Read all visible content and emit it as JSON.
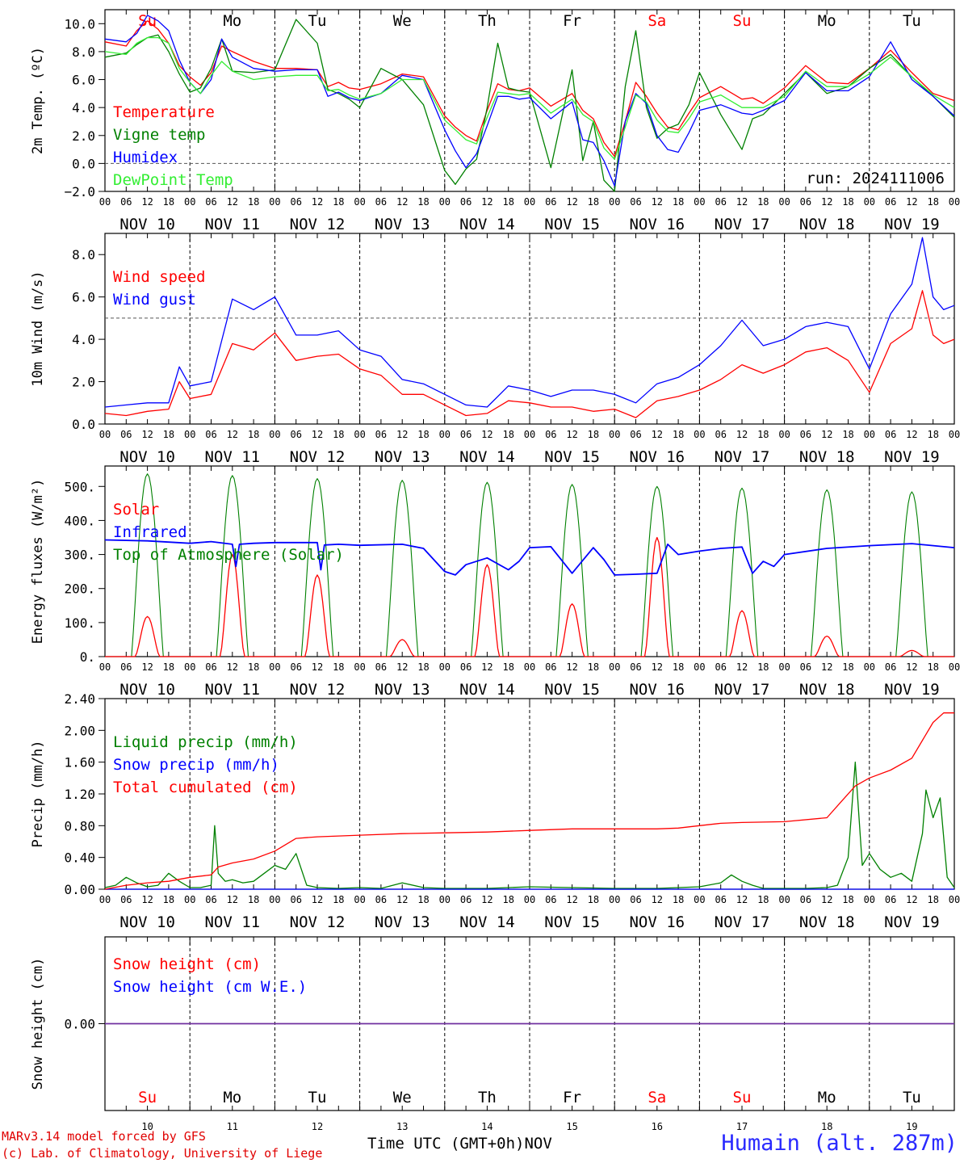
{
  "footer": {
    "model_credit": "MARv3.14 model forced by GFS",
    "lab_credit": "(c) Lab. of Climatology, University of Liege",
    "time_axis_title": "Time UTC (GMT+0h)",
    "month": "NOV",
    "station": "Humain (alt. 287m)"
  },
  "colors": {
    "red": "#ff0000",
    "green": "#008000",
    "blue": "#0000ff",
    "lightgreen": "#33ee33",
    "purple": "#7030a0"
  },
  "chart_data": [
    {
      "type": "line",
      "ylabel": "2m Temp. (ºC)",
      "ylim": [
        -2,
        11
      ],
      "yticks": [
        "10.0",
        "8.0",
        "6.0",
        "4.0",
        "2.0",
        "0.0",
        "−2.0"
      ],
      "ytick_values": [
        10,
        8,
        6,
        4,
        2,
        0,
        -2
      ],
      "reference_line": 0,
      "weekdays": [
        "Su",
        "Mo",
        "Tu",
        "We",
        "Th",
        "Fr",
        "Sa",
        "Su",
        "Mo",
        "Tu"
      ],
      "weekday_colors": [
        "red",
        "black",
        "black",
        "black",
        "black",
        "black",
        "red",
        "red",
        "black",
        "black"
      ],
      "hour_ticks": [
        "00",
        "06",
        "12",
        "18"
      ],
      "day_labels": [
        "NOV 10",
        "NOV 11",
        "NOV 12",
        "NOV 13",
        "NOV 14",
        "NOV 15",
        "NOV 16",
        "NOV 17",
        "NOV 18",
        "NOV 19"
      ],
      "run_label": "run: 2024111006",
      "x_hours": [
        0,
        6,
        9,
        12,
        15,
        18,
        21,
        24,
        27,
        30,
        33,
        36,
        42,
        48,
        54,
        60,
        63,
        66,
        69,
        72,
        78,
        84,
        90,
        96,
        99,
        102,
        105,
        108,
        111,
        114,
        117,
        120,
        126,
        132,
        135,
        138,
        141,
        144,
        147,
        150,
        153,
        156,
        159,
        162,
        165,
        168,
        174,
        180,
        183,
        186,
        192,
        198,
        204,
        210,
        216,
        222,
        228,
        234,
        240
      ],
      "series": [
        {
          "name": "Temperature",
          "color": "red",
          "values": [
            8.7,
            8.4,
            9.5,
            10.2,
            9.6,
            8.6,
            7.0,
            6.2,
            5.6,
            6.5,
            8.4,
            8.0,
            7.3,
            6.8,
            6.8,
            6.7,
            5.5,
            5.8,
            5.4,
            5.3,
            5.7,
            6.4,
            6.2,
            3.4,
            2.6,
            2.0,
            1.6,
            3.8,
            5.7,
            5.3,
            5.2,
            5.4,
            4.1,
            5.0,
            3.8,
            3.2,
            1.5,
            0.5,
            3.0,
            5.8,
            4.8,
            3.6,
            2.6,
            2.4,
            3.6,
            4.7,
            5.5,
            4.6,
            4.7,
            4.3,
            5.4,
            7.0,
            5.8,
            5.7,
            6.8,
            8.1,
            6.5,
            5.0,
            4.5
          ]
        },
        {
          "name": "Vigne temp",
          "color": "green",
          "values": [
            7.6,
            7.9,
            8.5,
            9.0,
            9.2,
            8.0,
            6.4,
            5.1,
            5.4,
            6.8,
            8.9,
            6.6,
            6.5,
            6.7,
            10.3,
            8.6,
            5.3,
            5.0,
            4.6,
            4.0,
            6.8,
            6.0,
            4.2,
            -0.5,
            -1.5,
            -0.4,
            0.3,
            4.0,
            8.6,
            5.4,
            5.2,
            5.1,
            -0.3,
            6.7,
            0.2,
            3.0,
            -1.2,
            -2.0,
            5.5,
            9.5,
            4.0,
            1.8,
            2.5,
            2.8,
            4.2,
            6.5,
            3.5,
            1.0,
            3.2,
            3.5,
            5.0,
            6.5,
            5.0,
            5.5,
            6.8,
            7.8,
            6.2,
            4.8,
            3.3
          ]
        },
        {
          "name": "Humidex",
          "color": "blue",
          "values": [
            8.9,
            8.7,
            9.3,
            10.6,
            10.2,
            9.5,
            7.4,
            5.8,
            5.0,
            6.0,
            8.9,
            7.6,
            6.8,
            6.6,
            6.7,
            6.7,
            4.8,
            5.1,
            4.7,
            4.5,
            5.0,
            6.3,
            6.0,
            2.4,
            0.9,
            -0.3,
            0.7,
            2.7,
            4.8,
            4.8,
            4.6,
            4.7,
            3.2,
            4.4,
            1.7,
            1.5,
            0.2,
            -1.6,
            3.0,
            5.0,
            4.3,
            2.0,
            1.0,
            0.8,
            2.2,
            3.8,
            4.2,
            3.6,
            3.5,
            3.8,
            4.5,
            6.5,
            5.2,
            5.2,
            6.2,
            8.7,
            6.0,
            4.8,
            3.4
          ]
        },
        {
          "name": "DewPoint Temp",
          "color": "lightgreen",
          "values": [
            8.0,
            7.8,
            8.6,
            9.0,
            9.0,
            8.6,
            6.8,
            5.8,
            5.0,
            6.3,
            7.3,
            6.6,
            6.0,
            6.2,
            6.3,
            6.3,
            5.2,
            5.3,
            4.9,
            4.6,
            5.0,
            6.0,
            6.0,
            3.1,
            2.4,
            1.7,
            1.4,
            3.3,
            5.1,
            5.0,
            4.9,
            5.0,
            3.6,
            4.6,
            3.5,
            3.0,
            1.1,
            0.3,
            2.6,
            4.9,
            4.4,
            3.1,
            2.3,
            2.2,
            3.2,
            4.4,
            4.9,
            4.0,
            4.0,
            4.0,
            4.8,
            6.6,
            5.5,
            5.5,
            6.4,
            7.6,
            6.2,
            4.9,
            4.0
          ]
        }
      ]
    },
    {
      "type": "line",
      "ylabel": "10m Wind (m/s)",
      "ylim": [
        0,
        9
      ],
      "yticks": [
        "8.0",
        "6.0",
        "4.0",
        "2.0",
        "0.0"
      ],
      "ytick_values": [
        8,
        6,
        4,
        2,
        0
      ],
      "reference_line": 5,
      "hour_ticks": [
        "00",
        "06",
        "12",
        "18"
      ],
      "day_labels": [
        "NOV 10",
        "NOV 11",
        "NOV 12",
        "NOV 13",
        "NOV 14",
        "NOV 15",
        "NOV 16",
        "NOV 17",
        "NOV 18",
        "NOV 19"
      ],
      "x_hours": [
        0,
        6,
        12,
        18,
        21,
        24,
        30,
        36,
        42,
        48,
        54,
        60,
        66,
        72,
        78,
        84,
        90,
        96,
        102,
        108,
        114,
        120,
        126,
        132,
        138,
        144,
        150,
        156,
        162,
        168,
        174,
        180,
        186,
        192,
        198,
        204,
        210,
        216,
        222,
        228,
        231,
        234,
        237,
        240
      ],
      "series": [
        {
          "name": "Wind speed",
          "color": "red",
          "values": [
            0.5,
            0.4,
            0.6,
            0.7,
            2.0,
            1.2,
            1.4,
            3.8,
            3.5,
            4.3,
            3.0,
            3.2,
            3.3,
            2.6,
            2.3,
            1.4,
            1.4,
            0.9,
            0.4,
            0.5,
            1.1,
            1.0,
            0.8,
            0.8,
            0.6,
            0.7,
            0.3,
            1.1,
            1.3,
            1.6,
            2.1,
            2.8,
            2.4,
            2.8,
            3.4,
            3.6,
            3.0,
            1.5,
            3.8,
            4.5,
            6.3,
            4.2,
            3.8,
            4.0
          ]
        },
        {
          "name": "Wind gust",
          "color": "blue",
          "values": [
            0.8,
            0.9,
            1.0,
            1.0,
            2.7,
            1.8,
            2.0,
            5.9,
            5.4,
            6.0,
            4.2,
            4.2,
            4.4,
            3.5,
            3.2,
            2.1,
            1.9,
            1.4,
            0.9,
            0.8,
            1.8,
            1.6,
            1.3,
            1.6,
            1.6,
            1.4,
            1.0,
            1.9,
            2.2,
            2.8,
            3.7,
            4.9,
            3.7,
            4.0,
            4.6,
            4.8,
            4.6,
            2.6,
            5.2,
            6.6,
            8.8,
            6.0,
            5.4,
            5.6
          ]
        }
      ]
    },
    {
      "type": "line",
      "ylabel": "Energy fluxes (W/m²)",
      "ylim": [
        0,
        560
      ],
      "yticks": [
        "500.",
        "400.",
        "300.",
        "200.",
        "100.",
        "0."
      ],
      "ytick_values": [
        500,
        400,
        300,
        200,
        100,
        0
      ],
      "hour_ticks": [
        "00",
        "06",
        "12",
        "18"
      ],
      "day_labels": [
        "NOV 10",
        "NOV 11",
        "NOV 12",
        "NOV 13",
        "NOV 14",
        "NOV 15",
        "NOV 16",
        "NOV 17",
        "NOV 18",
        "NOV 19"
      ],
      "toa_peaks": [
        537,
        532,
        523,
        518,
        512,
        506,
        500,
        495,
        490,
        484
      ],
      "solar_peaks": [
        118,
        300,
        240,
        50,
        270,
        155,
        350,
        135,
        60,
        18
      ],
      "series": [
        {
          "name": "Solar",
          "color": "red"
        },
        {
          "name": "Infrared",
          "color": "blue",
          "x_hours": [
            0,
            12,
            24,
            30,
            36,
            37,
            38,
            42,
            48,
            54,
            60,
            61,
            62,
            66,
            72,
            84,
            90,
            96,
            99,
            102,
            108,
            114,
            117,
            120,
            126,
            132,
            138,
            141,
            144,
            150,
            156,
            159,
            162,
            168,
            174,
            180,
            183,
            186,
            189,
            192,
            204,
            216,
            228,
            240
          ],
          "values": [
            343,
            340,
            333,
            338,
            330,
            265,
            330,
            333,
            335,
            335,
            335,
            255,
            328,
            330,
            327,
            330,
            318,
            250,
            240,
            270,
            290,
            255,
            280,
            320,
            323,
            245,
            320,
            285,
            240,
            242,
            245,
            330,
            300,
            310,
            318,
            322,
            245,
            280,
            265,
            300,
            318,
            326,
            332,
            320
          ]
        },
        {
          "name": "Top of Atmosphere (Solar)",
          "color": "green"
        }
      ]
    },
    {
      "type": "line",
      "ylabel": "Precip (mm/h)",
      "ylim": [
        0,
        2.4
      ],
      "yticks": [
        "2.40",
        "2.00",
        "1.60",
        "1.20",
        "0.80",
        "0.40",
        "0.00"
      ],
      "ytick_values": [
        2.4,
        2.0,
        1.6,
        1.2,
        0.8,
        0.4,
        0.0
      ],
      "hour_ticks": [
        "00",
        "06",
        "12",
        "18"
      ],
      "day_labels": [
        "NOV 10",
        "NOV 11",
        "NOV 12",
        "NOV 13",
        "NOV 14",
        "NOV 15",
        "NOV 16",
        "NOV 17",
        "NOV 18",
        "NOV 19"
      ],
      "series": [
        {
          "name": "Liquid precip (mm/h)",
          "color": "green",
          "x_hours": [
            0,
            3,
            6,
            9,
            12,
            15,
            18,
            21,
            24,
            27,
            30,
            31,
            32,
            34,
            36,
            39,
            42,
            45,
            48,
            51,
            54,
            57,
            60,
            66,
            72,
            78,
            84,
            90,
            96,
            108,
            120,
            132,
            144,
            156,
            168,
            174,
            177,
            180,
            183,
            186,
            192,
            198,
            204,
            207,
            210,
            212,
            214,
            216,
            219,
            222,
            225,
            228,
            231,
            232,
            234,
            236,
            238,
            240
          ],
          "values": [
            0.02,
            0.05,
            0.15,
            0.08,
            0.03,
            0.05,
            0.2,
            0.1,
            0.02,
            0.02,
            0.05,
            0.8,
            0.2,
            0.1,
            0.12,
            0.08,
            0.1,
            0.2,
            0.3,
            0.25,
            0.45,
            0.05,
            0.02,
            0.01,
            0.02,
            0.01,
            0.08,
            0.02,
            0.01,
            0.01,
            0.03,
            0.02,
            0.01,
            0.01,
            0.03,
            0.08,
            0.18,
            0.1,
            0.05,
            0.01,
            0.01,
            0.01,
            0.02,
            0.05,
            0.4,
            1.6,
            0.3,
            0.45,
            0.25,
            0.15,
            0.2,
            0.1,
            0.7,
            1.25,
            0.9,
            1.15,
            0.15,
            0.02
          ]
        },
        {
          "name": "Snow precip (mm/h)",
          "color": "blue",
          "x_hours": [
            0,
            240
          ],
          "values": [
            0,
            0
          ]
        },
        {
          "name": "Total cumulated (cm)",
          "color": "red",
          "x_hours": [
            0,
            6,
            12,
            18,
            24,
            30,
            32,
            36,
            42,
            48,
            54,
            60,
            72,
            84,
            96,
            108,
            120,
            132,
            144,
            156,
            162,
            168,
            174,
            180,
            192,
            204,
            208,
            212,
            216,
            222,
            228,
            234,
            237,
            240
          ],
          "values": [
            0,
            0.05,
            0.08,
            0.1,
            0.15,
            0.18,
            0.28,
            0.33,
            0.38,
            0.48,
            0.64,
            0.66,
            0.68,
            0.7,
            0.71,
            0.72,
            0.74,
            0.76,
            0.76,
            0.76,
            0.77,
            0.8,
            0.83,
            0.84,
            0.85,
            0.9,
            1.1,
            1.3,
            1.4,
            1.5,
            1.65,
            2.1,
            2.22,
            2.22
          ]
        }
      ]
    },
    {
      "type": "line",
      "ylabel": "Snow height (cm)",
      "ylim": [
        -1,
        1
      ],
      "yticks": [
        "0.00"
      ],
      "ytick_values": [
        0
      ],
      "weekdays": [
        "Su",
        "Mo",
        "Tu",
        "We",
        "Th",
        "Fr",
        "Sa",
        "Su",
        "Mo",
        "Tu"
      ],
      "weekday_colors": [
        "red",
        "black",
        "black",
        "black",
        "black",
        "black",
        "red",
        "red",
        "black",
        "black"
      ],
      "day_numbers": [
        "10",
        "11",
        "12",
        "13",
        "14",
        "15",
        "16",
        "17",
        "18",
        "19"
      ],
      "series": [
        {
          "name": "Snow height (cm)",
          "color": "red",
          "x_hours": [
            0,
            240
          ],
          "values": [
            0,
            0
          ]
        },
        {
          "name": "Snow height (cm W.E.)",
          "color": "blue",
          "x_hours": [
            0,
            240
          ],
          "values": [
            0,
            0
          ]
        }
      ]
    }
  ]
}
